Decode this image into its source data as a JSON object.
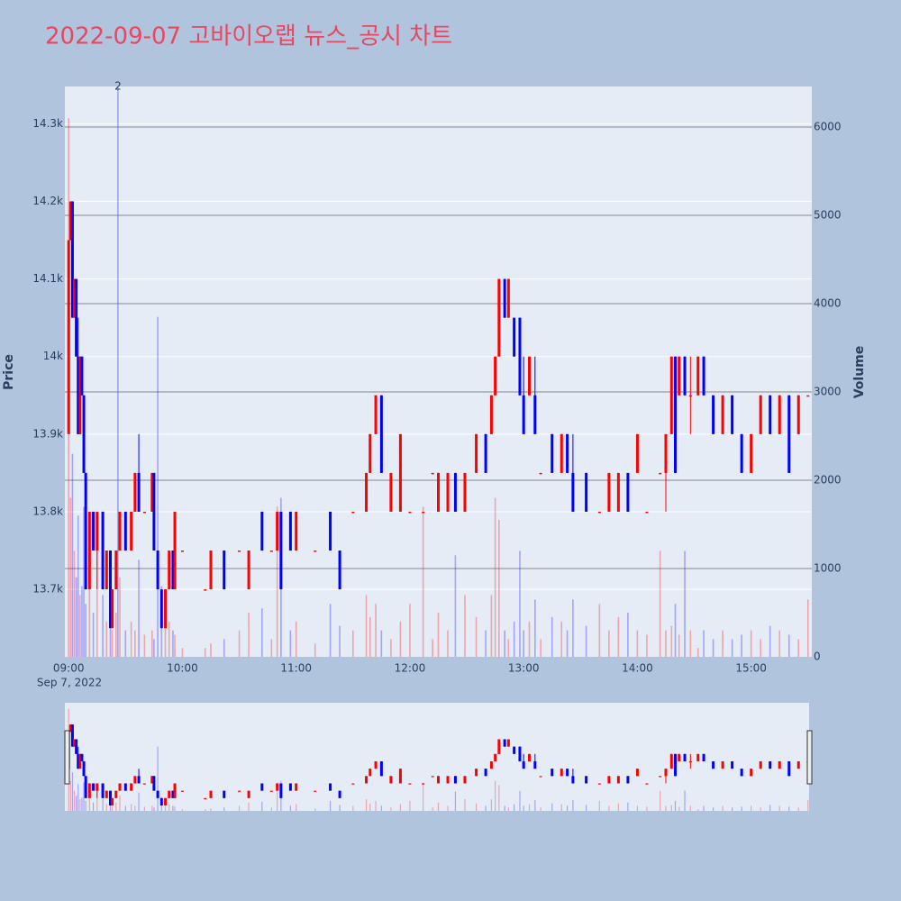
{
  "chart_data": {
    "type": "candlestick",
    "title": "2022-09-07 고바이오랩 뉴스_공시 차트",
    "y_label": "Price",
    "y2_label": "Volume",
    "x_date_label": "Sep 7, 2022",
    "up_color": "#ff0000",
    "down_color": "#0000ff",
    "xlim": [
      "08:58",
      "15:32"
    ],
    "xticks": [
      "09:00",
      "10:00",
      "11:00",
      "12:00",
      "13:00",
      "14:00",
      "15:00"
    ],
    "ylim": [
      13613,
      14348
    ],
    "yticks": [
      {
        "value": 13700,
        "label": "13.7k"
      },
      {
        "value": 13800,
        "label": "13.8k"
      },
      {
        "value": 13900,
        "label": "13.9k"
      },
      {
        "value": 14000,
        "label": "14k"
      },
      {
        "value": 14100,
        "label": "14.1k"
      },
      {
        "value": 14200,
        "label": "14.2k"
      },
      {
        "value": 14300,
        "label": "14.3k"
      }
    ],
    "y2lim": [
      0,
      6459
    ],
    "y2ticks": [
      0,
      1000,
      2000,
      3000,
      4000,
      5000,
      6000
    ],
    "grid": true,
    "rangeslider": true,
    "annotations": [
      {
        "x": "09:26",
        "text": "2"
      }
    ],
    "x": [
      "09:00",
      "09:01",
      "09:02",
      "09:03",
      "09:04",
      "09:05",
      "09:06",
      "09:07",
      "09:08",
      "09:09",
      "09:11",
      "09:13",
      "09:15",
      "09:18",
      "09:20",
      "09:22",
      "09:23",
      "09:25",
      "09:27",
      "09:30",
      "09:33",
      "09:35",
      "09:37",
      "09:40",
      "09:44",
      "09:45",
      "09:47",
      "09:49",
      "09:51",
      "09:53",
      "09:55",
      "09:56",
      "10:00",
      "10:12",
      "10:15",
      "10:22",
      "10:30",
      "10:35",
      "10:42",
      "10:47",
      "10:50",
      "10:52",
      "10:57",
      "11:00",
      "11:10",
      "11:18",
      "11:23",
      "11:30",
      "11:37",
      "11:39",
      "11:42",
      "11:45",
      "11:50",
      "11:55",
      "12:00",
      "12:07",
      "12:12",
      "12:15",
      "12:20",
      "12:24",
      "12:29",
      "12:35",
      "12:40",
      "12:43",
      "12:45",
      "12:47",
      "12:50",
      "12:52",
      "12:55",
      "12:58",
      "13:00",
      "13:03",
      "13:06",
      "13:09",
      "13:15",
      "13:20",
      "13:23",
      "13:26",
      "13:33",
      "13:40",
      "13:45",
      "13:50",
      "13:55",
      "14:00",
      "14:05",
      "14:12",
      "14:15",
      "14:18",
      "14:20",
      "14:22",
      "14:25",
      "14:28",
      "14:32",
      "14:35",
      "14:40",
      "14:45",
      "14:50",
      "14:55",
      "15:00",
      "15:05",
      "15:10",
      "15:15",
      "15:20",
      "15:25",
      "15:30"
    ],
    "open": [
      13900,
      14150,
      14200,
      14050,
      14100,
      14000,
      13900,
      14000,
      13950,
      13850,
      13700,
      13800,
      13750,
      13800,
      13700,
      13750,
      13650,
      13700,
      13750,
      13800,
      13750,
      13800,
      13850,
      13800,
      13800,
      13850,
      13750,
      13700,
      13650,
      13700,
      13750,
      13700,
      13750,
      13700,
      13700,
      13750,
      13750,
      13700,
      13800,
      13750,
      13750,
      13800,
      13800,
      13750,
      13750,
      13800,
      13750,
      13800,
      13800,
      13850,
      13900,
      13950,
      13800,
      13800,
      13800,
      13800,
      13850,
      13800,
      13800,
      13850,
      13800,
      13850,
      13900,
      13900,
      13950,
      14000,
      14100,
      14050,
      14050,
      14050,
      13950,
      13950,
      13950,
      13850,
      13900,
      13850,
      13900,
      13850,
      13850,
      13800,
      13800,
      13800,
      13850,
      13850,
      13800,
      13850,
      13850,
      13900,
      14000,
      13950,
      14000,
      13950,
      13950,
      14000,
      13950,
      13900,
      13950,
      13900,
      13850,
      13900,
      13950,
      13900,
      13950,
      13900,
      13950
    ],
    "high": [
      14150,
      14200,
      14200,
      14100,
      14100,
      14050,
      14000,
      14000,
      13950,
      13850,
      13800,
      13800,
      13800,
      13800,
      13750,
      13750,
      13700,
      13750,
      13800,
      13800,
      13800,
      13850,
      13900,
      13800,
      13850,
      13850,
      13750,
      13700,
      13700,
      13750,
      13750,
      13800,
      13750,
      13700,
      13750,
      13750,
      13750,
      13750,
      13800,
      13750,
      13800,
      13800,
      13800,
      13800,
      13750,
      13800,
      13750,
      13800,
      13850,
      13900,
      13950,
      13950,
      13850,
      13900,
      13800,
      13800,
      13850,
      13850,
      13850,
      13850,
      13850,
      13900,
      13900,
      13950,
      14000,
      14100,
      14100,
      14100,
      14050,
      14050,
      14000,
      14000,
      14000,
      13850,
      13900,
      13900,
      13900,
      13900,
      13850,
      13800,
      13850,
      13850,
      13850,
      13900,
      13800,
      13850,
      13900,
      14000,
      14000,
      14000,
      14000,
      14000,
      14000,
      14000,
      13950,
      13950,
      13950,
      13900,
      13900,
      13950,
      13950,
      13950,
      13950,
      13950,
      13950
    ],
    "low": [
      13900,
      14150,
      14050,
      14050,
      14000,
      13900,
      13900,
      13950,
      13850,
      13700,
      13700,
      13750,
      13700,
      13700,
      13700,
      13650,
      13650,
      13700,
      13750,
      13750,
      13750,
      13800,
      13800,
      13800,
      13800,
      13750,
      13700,
      13650,
      13650,
      13700,
      13700,
      13700,
      13750,
      13700,
      13700,
      13700,
      13750,
      13700,
      13750,
      13750,
      13750,
      13700,
      13750,
      13750,
      13750,
      13750,
      13700,
      13800,
      13800,
      13850,
      13900,
      13850,
      13800,
      13800,
      13800,
      13800,
      13850,
      13800,
      13800,
      13800,
      13800,
      13850,
      13850,
      13900,
      13950,
      14000,
      14050,
      14050,
      14000,
      13950,
      13900,
      13950,
      13900,
      13850,
      13850,
      13850,
      13850,
      13800,
      13800,
      13800,
      13800,
      13800,
      13800,
      13850,
      13800,
      13850,
      13800,
      13900,
      13850,
      13950,
      13950,
      13900,
      13950,
      13950,
      13900,
      13900,
      13900,
      13850,
      13850,
      13900,
      13900,
      13900,
      13850,
      13900,
      13950
    ],
    "close": [
      14150,
      14200,
      14050,
      14100,
      14000,
      13900,
      14000,
      13950,
      13850,
      13700,
      13800,
      13750,
      13800,
      13700,
      13750,
      13650,
      13700,
      13750,
      13800,
      13750,
      13800,
      13850,
      13800,
      13800,
      13850,
      13750,
      13700,
      13650,
      13700,
      13750,
      13700,
      13800,
      13750,
      13700,
      13750,
      13700,
      13750,
      13750,
      13750,
      13750,
      13800,
      13700,
      13750,
      13800,
      13750,
      13750,
      13700,
      13800,
      13850,
      13900,
      13950,
      13850,
      13850,
      13900,
      13800,
      13800,
      13850,
      13850,
      13850,
      13800,
      13850,
      13900,
      13850,
      13950,
      14000,
      14100,
      14050,
      14100,
      14000,
      13950,
      13900,
      14000,
      13900,
      13850,
      13850,
      13900,
      13850,
      13800,
      13800,
      13800,
      13850,
      13850,
      13800,
      13900,
      13800,
      13850,
      13900,
      14000,
      13850,
      14000,
      13950,
      13950,
      14000,
      13950,
      13900,
      13950,
      13900,
      13850,
      13900,
      13950,
      13900,
      13950,
      13850,
      13950,
      13950
    ],
    "volume": [
      6100,
      1800,
      2300,
      1200,
      900,
      1600,
      700,
      800,
      1700,
      600,
      900,
      500,
      1200,
      700,
      400,
      800,
      300,
      500,
      900,
      300,
      400,
      300,
      1100,
      250,
      300,
      200,
      3850,
      800,
      500,
      400,
      300,
      250,
      100,
      100,
      150,
      200,
      300,
      500,
      550,
      200,
      1700,
      1800,
      300,
      400,
      150,
      600,
      350,
      300,
      700,
      450,
      600,
      300,
      200,
      400,
      600,
      1700,
      200,
      500,
      300,
      1150,
      700,
      450,
      300,
      700,
      1800,
      1550,
      300,
      200,
      400,
      1200,
      300,
      400,
      650,
      200,
      450,
      400,
      300,
      650,
      350,
      600,
      300,
      450,
      500,
      300,
      250,
      1200,
      300,
      350,
      600,
      250,
      1200,
      300,
      100,
      300,
      200,
      300,
      200,
      250,
      300,
      200,
      350,
      300,
      250,
      200,
      650
    ]
  }
}
